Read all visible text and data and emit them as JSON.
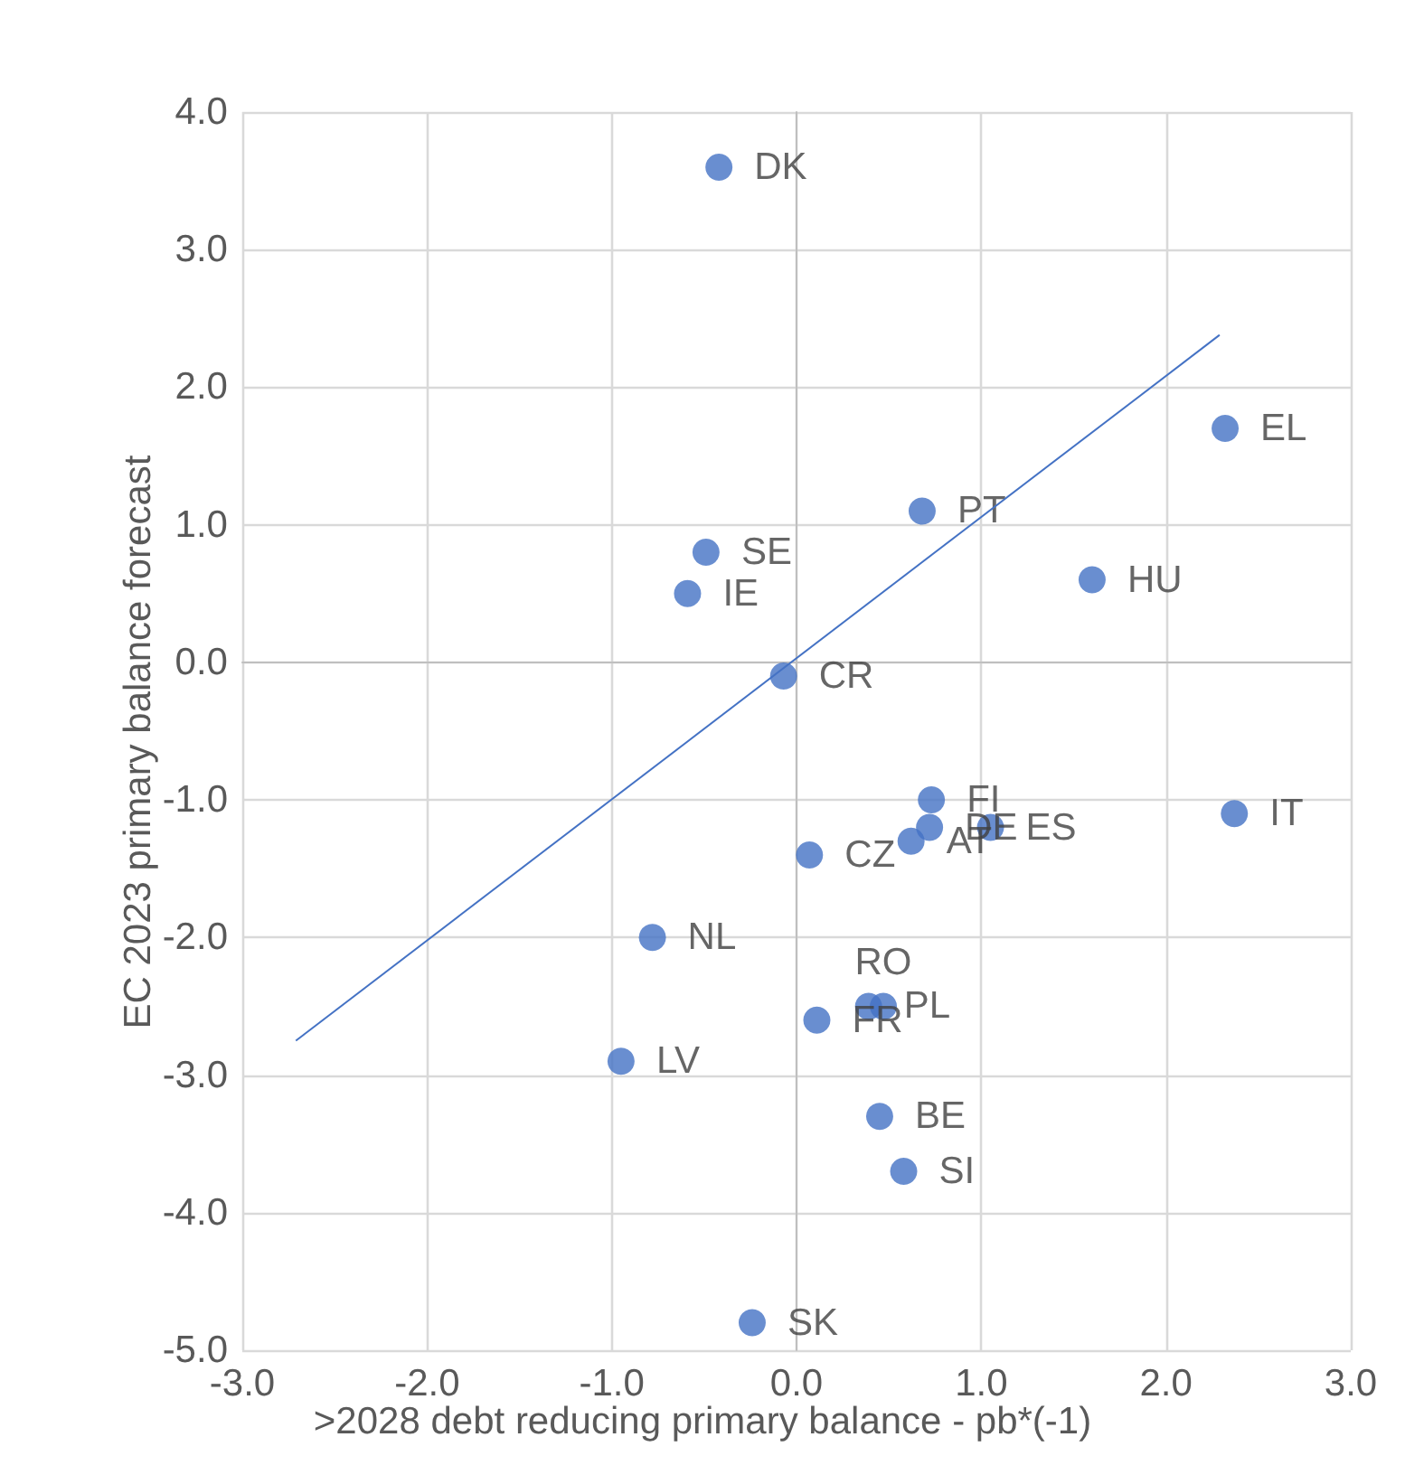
{
  "chart_data": {
    "type": "scatter",
    "xlabel": ">2028 debt reducing primary balance - pb*(-1)",
    "ylabel": "EC 2023 primary balance forecast",
    "series": [
      {
        "type": "scatter",
        "color": "#4472c4",
        "x": [
          -0.42,
          -0.49,
          -0.59,
          -0.07,
          0.68,
          1.6,
          2.32,
          0.73,
          2.37,
          0.72,
          1.05,
          0.62,
          0.07,
          -0.78,
          0.39,
          0.47,
          0.11,
          -0.95,
          0.45,
          0.58,
          -0.24
        ],
        "values": [
          3.6,
          0.8,
          0.5,
          -0.1,
          1.1,
          0.6,
          1.7,
          -1.0,
          -1.1,
          -1.2,
          -1.2,
          -1.3,
          -1.4,
          -2.0,
          -2.5,
          -2.5,
          -2.6,
          -2.9,
          -3.3,
          -3.7,
          -4.8
        ],
        "value_labels": [
          "DK",
          "SE",
          "IE",
          "CR",
          "PT",
          "HU",
          "EL",
          "FI",
          "IT",
          "DE",
          "ES",
          "AT",
          "CZ",
          "NL",
          "PL",
          "RO",
          "FR",
          "LV",
          "BE",
          "SI",
          "SK"
        ]
      },
      {
        "type": "line",
        "marker": "none",
        "color": "#4472c4",
        "x": [
          -2.71,
          2.29
        ],
        "values": [
          -2.75,
          2.38
        ]
      }
    ],
    "xlim": [
      -3,
      3
    ],
    "xticks": [
      {
        "value": -3,
        "label": "-3.0"
      },
      {
        "value": -2,
        "label": "-2.0"
      },
      {
        "value": -1,
        "label": "-1.0"
      },
      {
        "value": 0,
        "label": "0.0"
      },
      {
        "value": 1,
        "label": "1.0"
      },
      {
        "value": 2,
        "label": "2.0"
      },
      {
        "value": 3,
        "label": "3.0"
      }
    ],
    "ylim": [
      -5,
      4
    ],
    "yticks": [
      {
        "value": -5,
        "label": "-5.0"
      },
      {
        "value": -4,
        "label": "-4.0"
      },
      {
        "value": -3,
        "label": "-3.0"
      },
      {
        "value": -2,
        "label": "-2.0"
      },
      {
        "value": -1,
        "label": "-1.0"
      },
      {
        "value": 0,
        "label": "0.0"
      },
      {
        "value": 1,
        "label": "1.0"
      },
      {
        "value": 2,
        "label": "2.0"
      },
      {
        "value": 3,
        "label": "3.0"
      },
      {
        "value": 4,
        "label": "4.0"
      }
    ],
    "grid": true,
    "marker": "circle"
  }
}
